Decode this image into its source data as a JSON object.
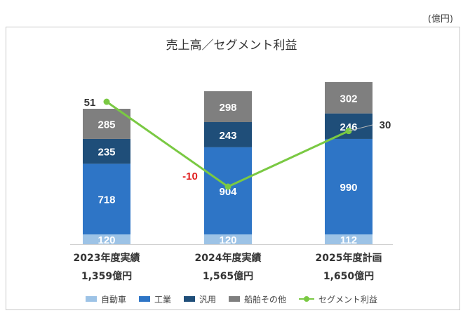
{
  "unit_label": "(億円)",
  "chart_data": {
    "type": "bar",
    "stacked": true,
    "title": "売上高／セグメント利益",
    "categories": [
      "2023年度実績",
      "2024年度実績",
      "2025年度計画"
    ],
    "totals": [
      "1,359億円",
      "1,565億円",
      "1,650億円"
    ],
    "series": [
      {
        "name": "自動車",
        "values": [
          120,
          120,
          112
        ],
        "color": "#9dc3e6"
      },
      {
        "name": "工業",
        "values": [
          718,
          904,
          990
        ],
        "color": "#2e75c6"
      },
      {
        "name": "汎用",
        "values": [
          235,
          243,
          246
        ],
        "color": "#1f4e79"
      },
      {
        "name": "船舶その他",
        "values": [
          285,
          298,
          302
        ],
        "color": "#7f7f7f"
      }
    ],
    "line": {
      "name": "セグメント利益",
      "values": [
        51,
        -10,
        30
      ],
      "color": "#7ac943"
    },
    "legend_position": "bottom",
    "grid": false
  }
}
